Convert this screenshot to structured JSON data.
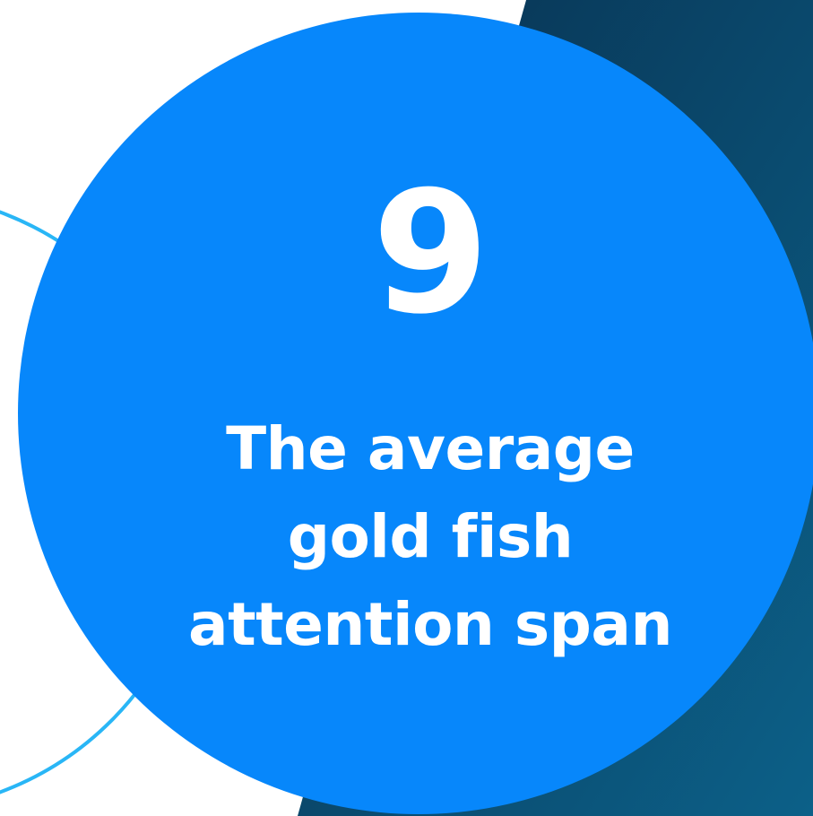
{
  "colors": {
    "page_background": "#ffffff",
    "circle_fill": "#0787fb",
    "text_color": "#ffffff",
    "arc_stroke": "#29b6f6",
    "panel_gradient_start": "#08304f",
    "panel_gradient_end": "#0c6088"
  },
  "stat": {
    "number": "9",
    "caption_lines": [
      "The average",
      "gold fish",
      "attention span"
    ]
  }
}
